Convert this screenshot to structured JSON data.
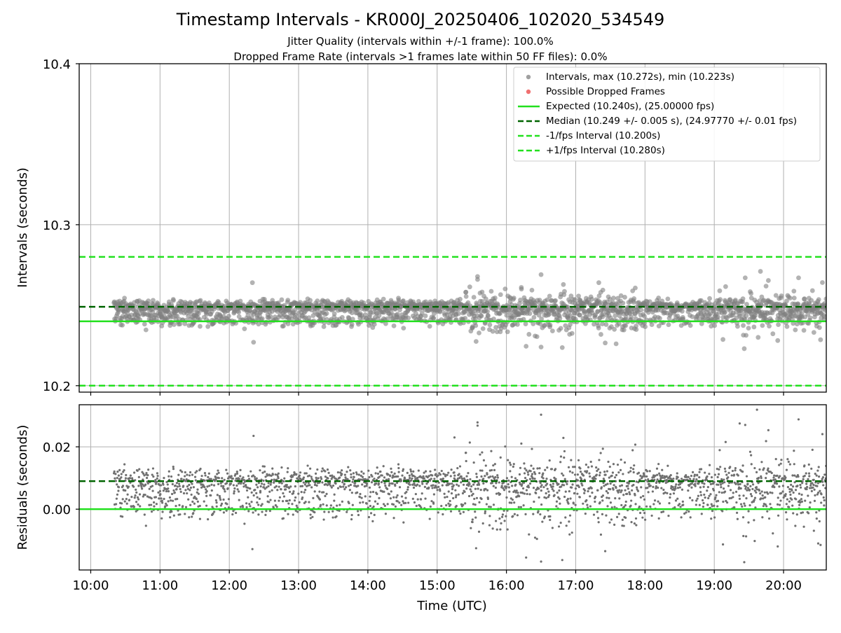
{
  "chart_data": {
    "type": "scatter",
    "title": "Timestamp Intervals - KR000J_20250406_102020_534549",
    "subtitle_lines": [
      "Jitter Quality (intervals within +/-1 frame): 100.0%",
      "Dropped Frame Rate (intervals >1 frames late within 50 FF files): 0.0%"
    ],
    "xlabel": "Time (UTC)",
    "x_ticks": [
      "10:00",
      "11:00",
      "12:00",
      "13:00",
      "14:00",
      "15:00",
      "16:00",
      "17:00",
      "18:00",
      "19:00",
      "20:00"
    ],
    "xlim": [
      "09:50",
      "20:37"
    ],
    "grid": true,
    "legend_position": "upper-right",
    "panels": [
      {
        "name": "intervals",
        "ylabel": "Intervals (seconds)",
        "ylim": [
          10.196,
          10.4
        ],
        "y_ticks": [
          "10.2",
          "10.3",
          "10.4"
        ],
        "legend": [
          "Intervals, max (10.272s), min (10.223s)",
          "Possible Dropped Frames",
          "Expected (10.240s), (25.00000 fps)",
          "Median (10.249 +/- 0.005 s), (24.97770 +/- 0.01 fps)",
          "-1/fps Interval (10.200s)",
          "+1/fps Interval (10.280s)"
        ],
        "lines": [
          {
            "name": "Expected",
            "y": 10.24,
            "style": "solid",
            "color": "#22e01e"
          },
          {
            "name": "Median",
            "y": 10.249,
            "style": "dashed",
            "color": "#006400"
          },
          {
            "name": "-1/fps Interval",
            "y": 10.2,
            "style": "dashed",
            "color": "#22e01e"
          },
          {
            "name": "+1/fps Interval",
            "y": 10.28,
            "style": "dashed",
            "color": "#22e01e"
          }
        ],
        "series": [
          {
            "name": "Intervals",
            "color": "#808080",
            "time_range": [
              "10:20",
              "20:37"
            ],
            "max": 10.272,
            "min": 10.223,
            "sample_points": [
              [
                "12:20",
                10.264
              ],
              [
                "12:21",
                10.227
              ],
              [
                "15:35",
                10.266
              ],
              [
                "16:13",
                10.26
              ],
              [
                "16:30",
                10.269
              ],
              [
                "16:30",
                10.224
              ],
              [
                "17:20",
                10.264
              ],
              [
                "17:35",
                10.226
              ],
              [
                "19:40",
                10.271
              ],
              [
                "19:38",
                10.23
              ],
              [
                "20:13",
                10.267
              ]
            ]
          },
          {
            "name": "Possible Dropped Frames",
            "color": "#f07070",
            "count": 0
          }
        ]
      },
      {
        "name": "residuals",
        "ylabel": "Residuals (seconds)",
        "ylim": [
          -0.0195,
          0.0335
        ],
        "y_ticks": [
          "0.00",
          "0.02"
        ],
        "lines": [
          {
            "name": "Median residual",
            "y": 0.009,
            "style": "dashed",
            "color": "#006400"
          },
          {
            "name": "Zero",
            "y": 0.0,
            "style": "solid",
            "color": "#22e01e"
          }
        ],
        "series": [
          {
            "name": "Residuals",
            "color": "#707070",
            "time_range": [
              "10:20",
              "20:37"
            ],
            "sample_points": [
              [
                "12:21",
                0.0235
              ],
              [
                "12:20",
                -0.0128
              ],
              [
                "15:15",
                0.023
              ],
              [
                "15:35",
                0.0268
              ],
              [
                "16:30",
                0.0303
              ],
              [
                "16:30",
                -0.0168
              ],
              [
                "19:37",
                0.0319
              ],
              [
                "19:22",
                0.0275
              ],
              [
                "20:13",
                0.0288
              ],
              [
                "19:35",
                -0.0102
              ],
              [
                "20:30",
                -0.011
              ]
            ]
          }
        ]
      }
    ]
  }
}
